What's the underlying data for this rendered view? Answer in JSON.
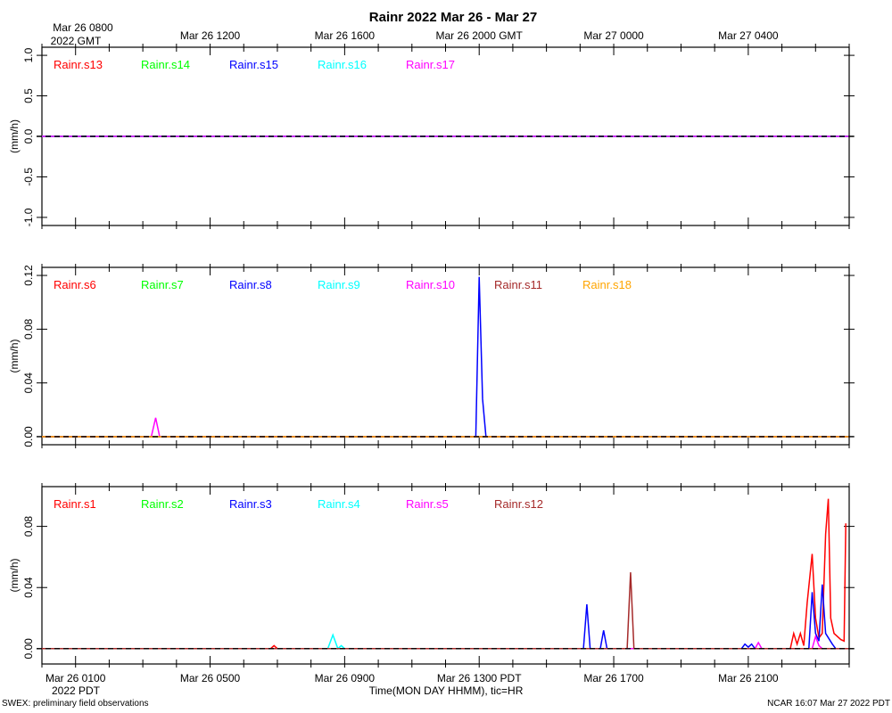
{
  "title": "Rainr 2022 Mar 26 - Mar 27",
  "footer_left": "SWEX: preliminary field observations",
  "footer_right": "NCAR 16:07 Mar 27 2022 PDT",
  "bottom_axis": {
    "label": "Time(MON DAY HHMM), tic=HR",
    "year_label": "2022 PDT",
    "major_ticks": [
      {
        "hour": 1,
        "label": "Mar 26 0100"
      },
      {
        "hour": 5,
        "label": "Mar 26 0500"
      },
      {
        "hour": 9,
        "label": "Mar 26 0900"
      },
      {
        "hour": 13,
        "label": "Mar 26 1300 PDT"
      },
      {
        "hour": 17,
        "label": "Mar 26 1700"
      },
      {
        "hour": 21,
        "label": "Mar 26 2100"
      }
    ]
  },
  "top_axis": {
    "first_label": "Mar 26 0800",
    "year_label": "2022 GMT",
    "major_ticks": [
      {
        "hour": 5,
        "label": "Mar 26 1200"
      },
      {
        "hour": 9,
        "label": "Mar 26 1600"
      },
      {
        "hour": 13,
        "label": "Mar 26 2000 GMT"
      },
      {
        "hour": 17,
        "label": "Mar 27 0000"
      },
      {
        "hour": 21,
        "label": "Mar 27 0400"
      }
    ]
  },
  "chart_data": [
    {
      "type": "line",
      "ylabel": "(mm/h)",
      "x_units": "hours since Mar 26 0000 PDT",
      "xlim": [
        0,
        24
      ],
      "ylim": [
        -1.1,
        1.1
      ],
      "y_ticks": [
        {
          "v": -1,
          "label": "-1.0"
        },
        {
          "v": -0.5,
          "label": "-0.5"
        },
        {
          "v": 0,
          "label": "0.0"
        },
        {
          "v": 0.5,
          "label": "0.5"
        },
        {
          "v": 1,
          "label": "1.0"
        }
      ],
      "dashed_zero": true,
      "series": [
        {
          "name": "Rainr.s13",
          "color": "#ff0000",
          "points": [
            [
              0,
              0
            ],
            [
              24,
              0
            ]
          ]
        },
        {
          "name": "Rainr.s14",
          "color": "#00ff00",
          "points": [
            [
              0,
              0
            ],
            [
              24,
              0
            ]
          ]
        },
        {
          "name": "Rainr.s15",
          "color": "#0000ff",
          "points": [
            [
              0,
              0
            ],
            [
              24,
              0
            ]
          ]
        },
        {
          "name": "Rainr.s16",
          "color": "#00ffff",
          "points": [
            [
              0,
              0
            ],
            [
              24,
              0
            ]
          ]
        },
        {
          "name": "Rainr.s17",
          "color": "#ff00ff",
          "points": [
            [
              0,
              0
            ],
            [
              24,
              0
            ]
          ]
        }
      ]
    },
    {
      "type": "line",
      "ylabel": "(mm/h)",
      "x_units": "hours since Mar 26 0000 PDT",
      "xlim": [
        0,
        24
      ],
      "ylim": [
        -0.006,
        0.126
      ],
      "y_ticks": [
        {
          "v": 0,
          "label": "0.00"
        },
        {
          "v": 0.04,
          "label": "0.04"
        },
        {
          "v": 0.08,
          "label": "0.08"
        },
        {
          "v": 0.12,
          "label": "0.12"
        }
      ],
      "dashed_zero": true,
      "series": [
        {
          "name": "Rainr.s6",
          "color": "#ff0000",
          "points": [
            [
              0,
              0
            ],
            [
              24,
              0
            ]
          ]
        },
        {
          "name": "Rainr.s7",
          "color": "#00ff00",
          "points": [
            [
              0,
              0
            ],
            [
              24,
              0
            ]
          ]
        },
        {
          "name": "Rainr.s8",
          "color": "#0000ff",
          "points": [
            [
              0,
              0
            ],
            [
              12.9,
              0
            ],
            [
              13.0,
              0.119
            ],
            [
              13.1,
              0.028
            ],
            [
              13.2,
              0
            ],
            [
              24,
              0
            ]
          ]
        },
        {
          "name": "Rainr.s9",
          "color": "#00ffff",
          "points": [
            [
              0,
              0
            ],
            [
              24,
              0
            ]
          ]
        },
        {
          "name": "Rainr.s10",
          "color": "#ff00ff",
          "points": [
            [
              0,
              0
            ],
            [
              3.25,
              0
            ],
            [
              3.38,
              0.014
            ],
            [
              3.5,
              0
            ],
            [
              24,
              0
            ]
          ]
        },
        {
          "name": "Rainr.s11",
          "color": "#a52a2a",
          "points": [
            [
              0,
              0
            ],
            [
              24,
              0
            ]
          ]
        },
        {
          "name": "Rainr.s18",
          "color": "#ffa500",
          "points": [
            [
              0,
              0
            ],
            [
              24,
              0
            ]
          ]
        }
      ]
    },
    {
      "type": "line",
      "ylabel": "(mm/h)",
      "x_units": "hours since Mar 26 0000 PDT",
      "xlim": [
        0,
        24
      ],
      "ylim": [
        -0.01,
        0.106
      ],
      "y_ticks": [
        {
          "v": 0,
          "label": "0.00"
        },
        {
          "v": 0.04,
          "label": "0.04"
        },
        {
          "v": 0.08,
          "label": "0.08"
        }
      ],
      "dashed_zero": true,
      "series": [
        {
          "name": "Rainr.s1",
          "color": "#ff0000",
          "points": [
            [
              0,
              0
            ],
            [
              6.8,
              0
            ],
            [
              6.9,
              0.002
            ],
            [
              7.0,
              0
            ],
            [
              22.25,
              0
            ],
            [
              22.35,
              0.01
            ],
            [
              22.45,
              0.003
            ],
            [
              22.55,
              0.01
            ],
            [
              22.65,
              0.002
            ],
            [
              22.75,
              0.03
            ],
            [
              22.9,
              0.062
            ],
            [
              23.0,
              0.02
            ],
            [
              23.1,
              0.007
            ],
            [
              23.2,
              0.01
            ],
            [
              23.3,
              0.075
            ],
            [
              23.38,
              0.098
            ],
            [
              23.45,
              0.02
            ],
            [
              23.55,
              0.01
            ],
            [
              23.75,
              0.006
            ],
            [
              23.85,
              0.005
            ],
            [
              23.9,
              0.082
            ]
          ]
        },
        {
          "name": "Rainr.s2",
          "color": "#00ff00",
          "points": [
            [
              0,
              0
            ],
            [
              24,
              0
            ]
          ]
        },
        {
          "name": "Rainr.s3",
          "color": "#0000ff",
          "points": [
            [
              0,
              0
            ],
            [
              16.1,
              0
            ],
            [
              16.2,
              0.029
            ],
            [
              16.3,
              0
            ],
            [
              16.6,
              0
            ],
            [
              16.7,
              0.012
            ],
            [
              16.8,
              0
            ],
            [
              20.8,
              0
            ],
            [
              20.9,
              0.003
            ],
            [
              21.0,
              0.001
            ],
            [
              21.1,
              0.003
            ],
            [
              21.2,
              0
            ],
            [
              22.8,
              0
            ],
            [
              22.9,
              0.037
            ],
            [
              23.0,
              0.01
            ],
            [
              23.1,
              0.005
            ],
            [
              23.2,
              0.042
            ],
            [
              23.3,
              0.01
            ],
            [
              23.5,
              0.003
            ],
            [
              23.6,
              0
            ],
            [
              24,
              0
            ]
          ]
        },
        {
          "name": "Rainr.s4",
          "color": "#00ffff",
          "points": [
            [
              0,
              0
            ],
            [
              8.5,
              0
            ],
            [
              8.65,
              0.009
            ],
            [
              8.8,
              0
            ],
            [
              8.9,
              0.002
            ],
            [
              9.0,
              0
            ],
            [
              24,
              0
            ]
          ]
        },
        {
          "name": "Rainr.s5",
          "color": "#ff00ff",
          "points": [
            [
              0,
              0
            ],
            [
              21.2,
              0
            ],
            [
              21.3,
              0.004
            ],
            [
              21.4,
              0
            ],
            [
              22.9,
              0
            ],
            [
              23.0,
              0.008
            ],
            [
              23.1,
              0.002
            ],
            [
              23.2,
              0
            ],
            [
              24,
              0
            ]
          ]
        },
        {
          "name": "Rainr.s12",
          "color": "#a52a2a",
          "points": [
            [
              0,
              0
            ],
            [
              17.4,
              0
            ],
            [
              17.5,
              0.05
            ],
            [
              17.6,
              0
            ],
            [
              24,
              0
            ]
          ]
        }
      ]
    }
  ]
}
